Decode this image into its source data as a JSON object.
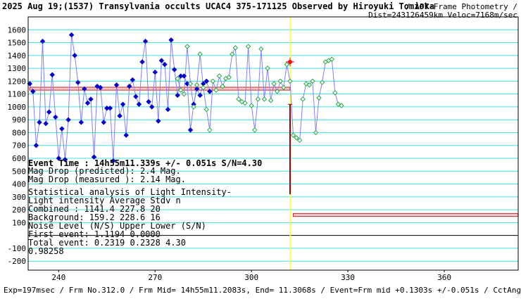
{
  "header": {
    "title": "2025 Aug 19;(1537) Transylvania occults UCAC4 375-171125 Observed by Hiroyuki Tomioka",
    "right_line1": "/ APT-Frame Photometry /",
    "right_line2": "Dist=243126459km Veloc=7168m/sec"
  },
  "colors": {
    "background": "#ffffff",
    "grid": "#40e0e0",
    "blue_points": "#0000cc",
    "blue_line": "#8080ff",
    "green_points": "#22aa44",
    "event_line": "#ffff66",
    "mean_band": "#cc3333",
    "event_marker": "#ff0000",
    "error_bar": "#990000"
  },
  "chart_data": {
    "type": "scatter",
    "xlim": [
      230.5,
      383
    ],
    "ylim": [
      -270,
      1700
    ],
    "x_ticks": [
      240,
      270,
      300,
      330,
      360
    ],
    "y_ticks": [
      1600,
      1500,
      1400,
      1300,
      1200,
      1100,
      1000,
      900,
      800,
      700,
      600,
      500,
      400,
      300,
      200,
      100,
      0,
      -100,
      -200
    ],
    "y_tick_labels": [
      "1600",
      "1500",
      "1400",
      "1300",
      "1200",
      "1100",
      "1000",
      "900",
      "800",
      "700",
      "600",
      "500",
      "400",
      "300",
      "200",
      "100",
      "",
      "-100",
      "-200"
    ],
    "grid": true,
    "event_x": 312.1,
    "levels": [
      {
        "name": "Combined",
        "value": 1141.4,
        "x_range": [
          231,
          312
        ]
      },
      {
        "name": "Background",
        "value": 159.2,
        "x_range": [
          313,
          383
        ]
      }
    ],
    "event_marker": {
      "x": 312,
      "y": 1350,
      "err_low": 320,
      "err_high": 1020
    },
    "series": [
      {
        "color": "blue",
        "x": [
          231,
          232,
          233,
          234,
          235,
          236,
          237,
          238,
          239,
          240,
          241,
          242,
          243,
          244,
          245,
          246,
          247,
          248,
          249,
          250,
          251,
          252,
          253,
          254,
          255,
          256,
          257,
          258,
          259,
          260,
          261,
          262,
          263,
          264,
          265,
          266,
          267,
          268,
          269,
          270,
          271,
          272,
          273,
          274,
          275,
          276,
          277,
          278,
          279,
          280,
          281,
          282,
          283,
          284,
          285,
          286,
          287
        ],
        "y": [
          1180,
          1120,
          700,
          880,
          1510,
          870,
          960,
          1250,
          920,
          600,
          830,
          590,
          900,
          1560,
          1400,
          1190,
          880,
          1140,
          1030,
          1060,
          610,
          1160,
          1150,
          880,
          990,
          990,
          580,
          1170,
          930,
          1020,
          780,
          1160,
          1210,
          1080,
          1020,
          1350,
          1510,
          1040,
          1000,
          1270,
          890,
          1360,
          1330,
          980,
          1520,
          1290,
          1090,
          1240,
          1240,
          1180,
          820,
          1020,
          1140,
          1090,
          1180,
          1200,
          1120
        ]
      },
      {
        "color": "green",
        "x": [
          277,
          278,
          279,
          280,
          281,
          282,
          283,
          284,
          285,
          286,
          287,
          288,
          289,
          290,
          291,
          292,
          293,
          294,
          295,
          296,
          297,
          298,
          299,
          300,
          301,
          302,
          303,
          304,
          305,
          306,
          307,
          308,
          309,
          310,
          311,
          312,
          313,
          314,
          315,
          316,
          317,
          318,
          319,
          320,
          321,
          322,
          323,
          324,
          325,
          326,
          327,
          328
        ],
        "y": [
          1220,
          1130,
          1100,
          1470,
          1180,
          1000,
          1170,
          1410,
          1150,
          980,
          820,
          1200,
          1130,
          1240,
          1160,
          1220,
          1230,
          1410,
          1460,
          1060,
          1040,
          1030,
          1470,
          1010,
          820,
          1060,
          1450,
          1060,
          1300,
          1050,
          1180,
          1120,
          1200,
          1150,
          1330,
          1200,
          780,
          760,
          740,
          1060,
          1180,
          1170,
          1200,
          800,
          1070,
          1190,
          1350,
          1360,
          1370,
          1110,
          1020,
          1010
        ]
      }
    ]
  },
  "annotations": {
    "event_time": "Event Time : 14h55m11.339s  +/- 0.051s  S/N=4.30",
    "mag_drop_predicted": "Mag Drop (predicted):  2.4    Mag.",
    "mag_drop_measured": "Mag Drop (measured ):  2.14   Mag.",
    "stats_title": "Statistical analysis of Light Intensity-",
    "stats_header": "Light intensity     Average   Stdv      n",
    "combined_row": "  Combined  :        1141.4    227.8    20",
    "background_row": "  Background:         159.2    228.6    16",
    "noise_header": "Noise Level (N/S)   Upper    Lower    (S/N)",
    "first_event_row": "   First event:      1.1194   0.0000",
    "total_event_row": "   Total  event:      0.2319   0.2328    4.30",
    "side_value": "0.98258"
  },
  "footer": {
    "text": "Exp=197msec / Frm No.312.0 / Frm Mid= 14h55m11.2083s,  End= 11.3068s / Event=Frm mid +0.1303s +/-0.051s / CctAngle=0.0deg"
  }
}
